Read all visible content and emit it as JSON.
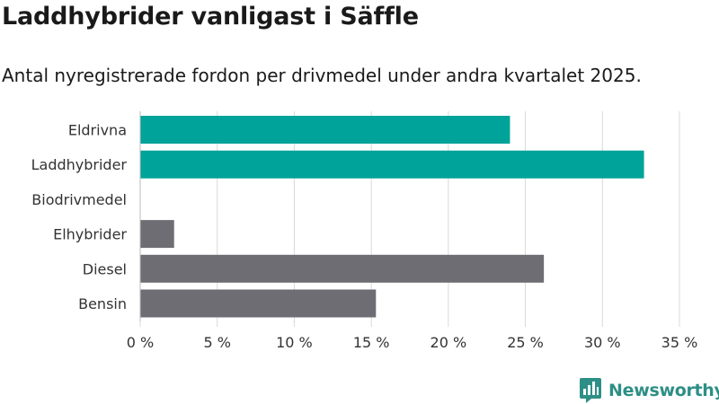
{
  "title": "Laddhybrider vanligast i Säffle",
  "subtitle": "Antal nyregistrerade fordon per drivmedel under andra kvartalet 2025.",
  "brand": {
    "name": "Newsworthy",
    "icon": "bar-chart-logo-icon"
  },
  "colors": {
    "accent": "#00a39a",
    "neutral": "#6d6d73",
    "grid": "#d9d9d9"
  },
  "chart_data": {
    "type": "bar",
    "orientation": "horizontal",
    "categories": [
      "Eldrivna",
      "Laddhybrider",
      "Biodrivmedel",
      "Elhybrider",
      "Diesel",
      "Bensin"
    ],
    "values": [
      24.0,
      32.7,
      0,
      2.2,
      26.2,
      15.3
    ],
    "colors": [
      "#00a39a",
      "#00a39a",
      "#00a39a",
      "#6d6d73",
      "#6d6d73",
      "#6d6d73"
    ],
    "xlim": [
      0,
      35
    ],
    "xticks": [
      0,
      5,
      10,
      15,
      20,
      25,
      30,
      35
    ],
    "tick_format": "{v} %",
    "grid": true,
    "legend": "none"
  }
}
